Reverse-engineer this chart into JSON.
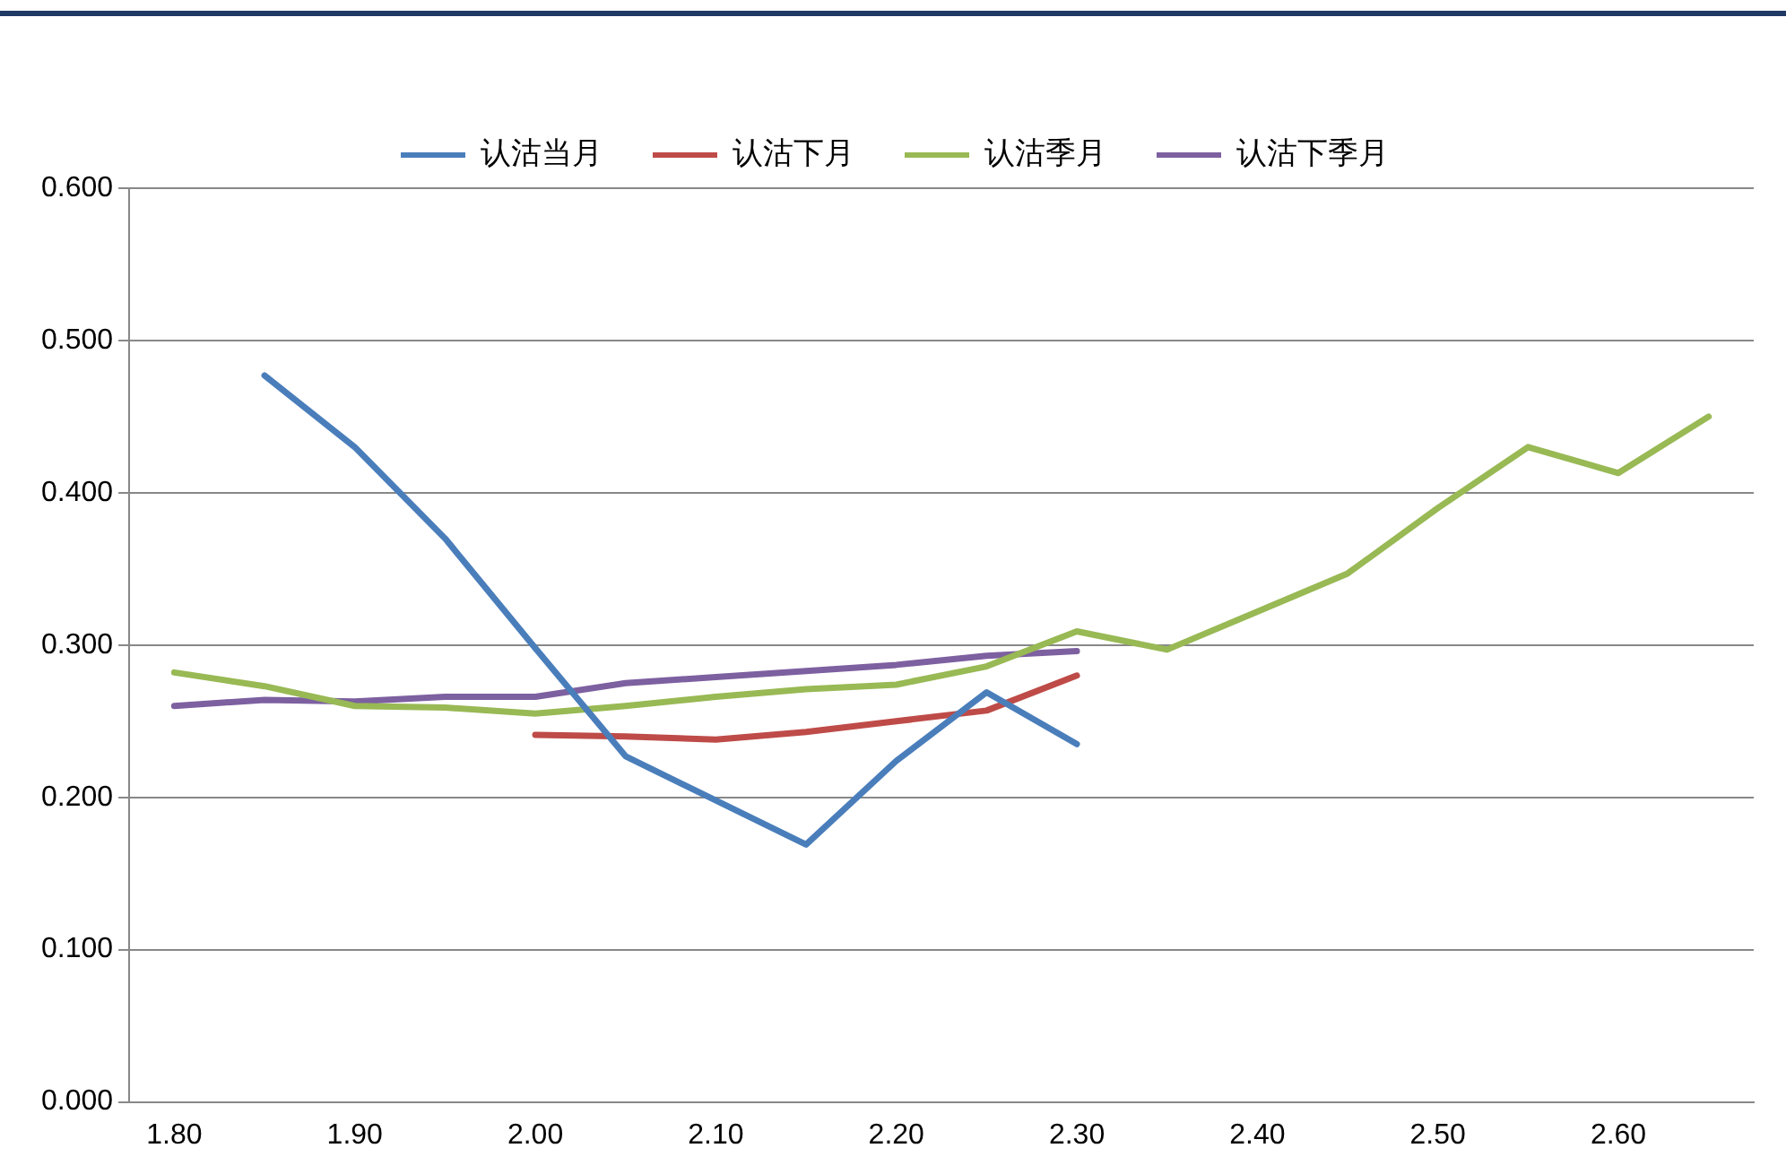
{
  "chart_data": {
    "type": "line",
    "categories": [
      "1.80",
      null,
      "1.90",
      null,
      "2.00",
      null,
      "2.10",
      null,
      "2.20",
      null,
      "2.30",
      null,
      "2.40",
      null,
      "2.50",
      null,
      "2.60",
      null
    ],
    "series": [
      {
        "name": "认沽当月",
        "color": "#4a7ebb",
        "values": [
          null,
          0.477,
          0.43,
          0.37,
          0.298,
          0.227,
          0.198,
          0.169,
          0.224,
          0.269,
          0.235,
          null,
          null,
          null,
          null,
          null,
          null,
          null
        ]
      },
      {
        "name": "认沽下月",
        "color": "#be4b48",
        "values": [
          null,
          null,
          null,
          null,
          0.241,
          0.24,
          0.238,
          0.243,
          0.25,
          0.257,
          0.28,
          null,
          null,
          null,
          null,
          null,
          null,
          null
        ]
      },
      {
        "name": "认沽季月",
        "color": "#98b954",
        "values": [
          0.282,
          0.273,
          0.26,
          0.259,
          0.255,
          0.26,
          0.266,
          0.271,
          0.274,
          0.286,
          0.309,
          0.297,
          0.322,
          0.347,
          0.39,
          0.43,
          0.413,
          0.45
        ]
      },
      {
        "name": "认沽下季月",
        "color": "#7d60a0",
        "values": [
          0.26,
          0.264,
          0.263,
          0.266,
          0.266,
          0.275,
          0.279,
          0.283,
          0.287,
          0.293,
          0.296,
          null,
          null,
          null,
          null,
          null,
          null,
          null
        ]
      }
    ],
    "ylim": [
      0,
      0.6
    ],
    "yticks": [
      {
        "value": 0,
        "label": "0.000"
      },
      {
        "value": 0.1,
        "label": "0.100"
      },
      {
        "value": 0.2,
        "label": "0.200"
      },
      {
        "value": 0.3,
        "label": "0.300"
      },
      {
        "value": 0.4,
        "label": "0.400"
      },
      {
        "value": 0.5,
        "label": "0.500"
      },
      {
        "value": 0.6,
        "label": "0.600"
      }
    ],
    "grid": "y",
    "legend": "top",
    "marker": "none",
    "line_style": "solid"
  }
}
